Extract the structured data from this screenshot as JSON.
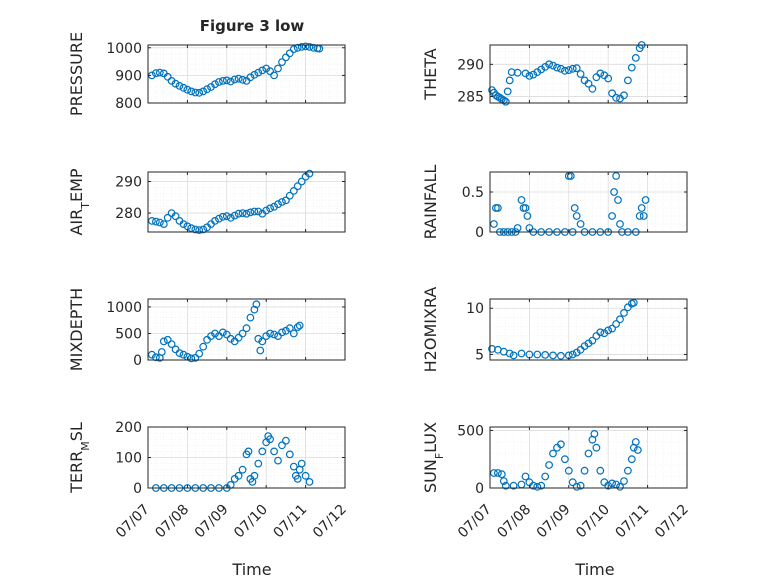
{
  "figure": {
    "title": "Figure 3 low",
    "xlabel": "Time"
  },
  "colors": {
    "marker": "#0072BD",
    "axis": "#262626",
    "grid": "#dcdcdc",
    "minorgrid": "#ececec"
  },
  "xaxis": {
    "range": [
      0,
      5
    ],
    "ticks": [
      0,
      1,
      2,
      3,
      4,
      5
    ],
    "tick_labels": [
      "07/07",
      "07/08",
      "07/09",
      "07/10",
      "07/11",
      "07/12"
    ]
  },
  "chart_data": [
    {
      "type": "scatter",
      "id": "pressure",
      "ylabel": "PRESSURE",
      "ylim": [
        800,
        1010
      ],
      "yticks": [
        800,
        900,
        1000
      ],
      "ytick_labels": [
        "800",
        "900",
        "1000"
      ],
      "show_xticks": false,
      "points": [
        [
          0.1,
          900
        ],
        [
          0.2,
          908
        ],
        [
          0.3,
          910
        ],
        [
          0.4,
          907
        ],
        [
          0.5,
          895
        ],
        [
          0.6,
          880
        ],
        [
          0.7,
          870
        ],
        [
          0.8,
          862
        ],
        [
          0.9,
          855
        ],
        [
          1.0,
          848
        ],
        [
          1.1,
          842
        ],
        [
          1.2,
          838
        ],
        [
          1.3,
          837
        ],
        [
          1.4,
          842
        ],
        [
          1.5,
          850
        ],
        [
          1.6,
          858
        ],
        [
          1.7,
          868
        ],
        [
          1.8,
          876
        ],
        [
          1.9,
          880
        ],
        [
          2.0,
          882
        ],
        [
          2.1,
          878
        ],
        [
          2.2,
          885
        ],
        [
          2.3,
          888
        ],
        [
          2.4,
          884
        ],
        [
          2.5,
          880
        ],
        [
          2.6,
          893
        ],
        [
          2.7,
          902
        ],
        [
          2.8,
          910
        ],
        [
          2.9,
          918
        ],
        [
          3.0,
          925
        ],
        [
          3.1,
          915
        ],
        [
          3.2,
          900
        ],
        [
          3.3,
          925
        ],
        [
          3.4,
          948
        ],
        [
          3.5,
          965
        ],
        [
          3.6,
          980
        ],
        [
          3.7,
          995
        ],
        [
          3.8,
          1000
        ],
        [
          3.9,
          1003
        ],
        [
          4.0,
          1005
        ],
        [
          4.1,
          1003
        ],
        [
          4.2,
          1000
        ],
        [
          4.3,
          998
        ],
        [
          4.35,
          997
        ]
      ]
    },
    {
      "type": "scatter",
      "id": "theta",
      "ylabel": "THETA",
      "ylim": [
        284,
        293
      ],
      "yticks": [
        285,
        290
      ],
      "ytick_labels": [
        "285",
        "290"
      ],
      "show_xticks": false,
      "points": [
        [
          0.05,
          286
        ],
        [
          0.1,
          285.6
        ],
        [
          0.15,
          285.2
        ],
        [
          0.2,
          285
        ],
        [
          0.25,
          284.8
        ],
        [
          0.3,
          284.6
        ],
        [
          0.35,
          284.4
        ],
        [
          0.4,
          284.2
        ],
        [
          0.45,
          285.8
        ],
        [
          0.5,
          287.5
        ],
        [
          0.55,
          288.8
        ],
        [
          0.7,
          288.7
        ],
        [
          0.9,
          288.6
        ],
        [
          1.0,
          288.2
        ],
        [
          1.1,
          288.4
        ],
        [
          1.2,
          288.8
        ],
        [
          1.3,
          289.2
        ],
        [
          1.4,
          289.6
        ],
        [
          1.5,
          290
        ],
        [
          1.6,
          289.8
        ],
        [
          1.7,
          289.5
        ],
        [
          1.8,
          289.3
        ],
        [
          1.9,
          289
        ],
        [
          2.0,
          289.1
        ],
        [
          2.1,
          289.3
        ],
        [
          2.2,
          289.4
        ],
        [
          2.3,
          288.5
        ],
        [
          2.4,
          287.5
        ],
        [
          2.5,
          287
        ],
        [
          2.6,
          286.2
        ],
        [
          2.7,
          288
        ],
        [
          2.8,
          288.6
        ],
        [
          2.9,
          288.3
        ],
        [
          3.0,
          287.8
        ],
        [
          3.1,
          285.5
        ],
        [
          3.2,
          284.8
        ],
        [
          3.3,
          284.7
        ],
        [
          3.4,
          285.2
        ],
        [
          3.5,
          287.5
        ],
        [
          3.6,
          289.5
        ],
        [
          3.7,
          291
        ],
        [
          3.8,
          292.5
        ],
        [
          3.85,
          293
        ]
      ]
    },
    {
      "type": "scatter",
      "id": "air_temp",
      "ylabel": "AIR_TEMP",
      "ylim": [
        274,
        293
      ],
      "yticks": [
        280,
        290
      ],
      "ytick_labels": [
        "280",
        "290"
      ],
      "show_xticks": false,
      "points": [
        [
          0.1,
          277.5
        ],
        [
          0.2,
          277.3
        ],
        [
          0.3,
          277
        ],
        [
          0.4,
          276.5
        ],
        [
          0.5,
          278.5
        ],
        [
          0.6,
          280
        ],
        [
          0.7,
          279
        ],
        [
          0.8,
          277.5
        ],
        [
          0.9,
          276.5
        ],
        [
          1.0,
          275.8
        ],
        [
          1.1,
          275.2
        ],
        [
          1.2,
          274.8
        ],
        [
          1.3,
          274.6
        ],
        [
          1.4,
          274.8
        ],
        [
          1.5,
          275.5
        ],
        [
          1.6,
          276.5
        ],
        [
          1.7,
          277.5
        ],
        [
          1.8,
          278.2
        ],
        [
          1.9,
          278.8
        ],
        [
          2.0,
          279
        ],
        [
          2.1,
          278.5
        ],
        [
          2.2,
          279.2
        ],
        [
          2.3,
          279.8
        ],
        [
          2.4,
          280
        ],
        [
          2.5,
          279.8
        ],
        [
          2.6,
          280.2
        ],
        [
          2.7,
          280.5
        ],
        [
          2.8,
          280.5
        ],
        [
          2.9,
          279.8
        ],
        [
          3.0,
          280.8
        ],
        [
          3.1,
          281.5
        ],
        [
          3.2,
          282
        ],
        [
          3.3,
          282.8
        ],
        [
          3.4,
          283.5
        ],
        [
          3.5,
          284
        ],
        [
          3.6,
          285.5
        ],
        [
          3.7,
          287
        ],
        [
          3.8,
          288.5
        ],
        [
          3.9,
          290
        ],
        [
          4.0,
          291.5
        ],
        [
          4.1,
          292.5
        ]
      ]
    },
    {
      "type": "scatter",
      "id": "rainfall",
      "ylabel": "RAINFALL",
      "ylim": [
        0,
        0.75
      ],
      "yticks": [
        0,
        0.5
      ],
      "ytick_labels": [
        "0",
        "0.5"
      ],
      "show_xticks": false,
      "points": [
        [
          0.1,
          0.1
        ],
        [
          0.15,
          0.3
        ],
        [
          0.2,
          0.3
        ],
        [
          0.25,
          0
        ],
        [
          0.35,
          0
        ],
        [
          0.45,
          0
        ],
        [
          0.55,
          0
        ],
        [
          0.65,
          0
        ],
        [
          0.7,
          0.05
        ],
        [
          0.8,
          0.4
        ],
        [
          0.85,
          0.3
        ],
        [
          0.9,
          0.3
        ],
        [
          0.95,
          0.2
        ],
        [
          1.0,
          0.05
        ],
        [
          1.1,
          0
        ],
        [
          1.3,
          0
        ],
        [
          1.5,
          0
        ],
        [
          1.7,
          0
        ],
        [
          1.9,
          0
        ],
        [
          2.0,
          0.7
        ],
        [
          2.05,
          0.7
        ],
        [
          2.1,
          0
        ],
        [
          2.15,
          0.3
        ],
        [
          2.2,
          0.2
        ],
        [
          2.3,
          0.1
        ],
        [
          2.4,
          0
        ],
        [
          2.6,
          0
        ],
        [
          2.8,
          0
        ],
        [
          3.0,
          0
        ],
        [
          3.1,
          0.2
        ],
        [
          3.15,
          0.5
        ],
        [
          3.2,
          0.7
        ],
        [
          3.25,
          0.4
        ],
        [
          3.3,
          0.1
        ],
        [
          3.35,
          0
        ],
        [
          3.5,
          0
        ],
        [
          3.7,
          0
        ],
        [
          3.8,
          0.2
        ],
        [
          3.85,
          0.3
        ],
        [
          3.9,
          0.2
        ],
        [
          3.95,
          0.4
        ]
      ]
    },
    {
      "type": "scatter",
      "id": "mixdepth",
      "ylabel": "MIXDEPTH",
      "ylim": [
        0,
        1150
      ],
      "yticks": [
        0,
        500,
        1000
      ],
      "ytick_labels": [
        "0",
        "500",
        "1000"
      ],
      "show_xticks": false,
      "points": [
        [
          0.1,
          100
        ],
        [
          0.2,
          50
        ],
        [
          0.3,
          40
        ],
        [
          0.35,
          150
        ],
        [
          0.4,
          350
        ],
        [
          0.5,
          380
        ],
        [
          0.6,
          300
        ],
        [
          0.7,
          200
        ],
        [
          0.8,
          130
        ],
        [
          0.9,
          100
        ],
        [
          1.0,
          60
        ],
        [
          1.1,
          30
        ],
        [
          1.2,
          40
        ],
        [
          1.3,
          120
        ],
        [
          1.4,
          250
        ],
        [
          1.5,
          380
        ],
        [
          1.6,
          450
        ],
        [
          1.7,
          500
        ],
        [
          1.8,
          450
        ],
        [
          1.9,
          520
        ],
        [
          2.0,
          480
        ],
        [
          2.1,
          400
        ],
        [
          2.2,
          350
        ],
        [
          2.3,
          420
        ],
        [
          2.4,
          500
        ],
        [
          2.5,
          600
        ],
        [
          2.6,
          800
        ],
        [
          2.7,
          950
        ],
        [
          2.75,
          1050
        ],
        [
          2.8,
          400
        ],
        [
          2.85,
          180
        ],
        [
          2.9,
          350
        ],
        [
          3.0,
          450
        ],
        [
          3.1,
          500
        ],
        [
          3.2,
          480
        ],
        [
          3.3,
          450
        ],
        [
          3.4,
          520
        ],
        [
          3.5,
          550
        ],
        [
          3.6,
          600
        ],
        [
          3.7,
          500
        ],
        [
          3.8,
          620
        ],
        [
          3.85,
          650
        ]
      ]
    },
    {
      "type": "scatter",
      "id": "h2omixra",
      "ylabel": "H2OMIXRA",
      "ylim": [
        4.4,
        11
      ],
      "yticks": [
        5,
        10
      ],
      "ytick_labels": [
        "5",
        "10"
      ],
      "show_xticks": false,
      "points": [
        [
          0.05,
          5.6
        ],
        [
          0.2,
          5.5
        ],
        [
          0.35,
          5.3
        ],
        [
          0.5,
          5.1
        ],
        [
          0.6,
          4.9
        ],
        [
          0.8,
          5.1
        ],
        [
          1.0,
          5.0
        ],
        [
          1.2,
          5.0
        ],
        [
          1.4,
          4.95
        ],
        [
          1.6,
          4.9
        ],
        [
          1.8,
          4.85
        ],
        [
          2.0,
          4.9
        ],
        [
          2.1,
          5.0
        ],
        [
          2.2,
          5.2
        ],
        [
          2.3,
          5.5
        ],
        [
          2.4,
          5.9
        ],
        [
          2.5,
          6.2
        ],
        [
          2.6,
          6.5
        ],
        [
          2.7,
          7.0
        ],
        [
          2.8,
          7.4
        ],
        [
          2.9,
          7.3
        ],
        [
          3.0,
          7.6
        ],
        [
          3.1,
          7.8
        ],
        [
          3.2,
          8.3
        ],
        [
          3.3,
          8.8
        ],
        [
          3.4,
          9.5
        ],
        [
          3.5,
          10.1
        ],
        [
          3.6,
          10.5
        ],
        [
          3.65,
          10.6
        ]
      ]
    },
    {
      "type": "scatter",
      "id": "terr_msl",
      "ylabel": "TERR_MSL",
      "ylim": [
        0,
        200
      ],
      "yticks": [
        0,
        100,
        200
      ],
      "ytick_labels": [
        "0",
        "100",
        "200"
      ],
      "show_xticks": true,
      "points": [
        [
          0.2,
          0
        ],
        [
          0.4,
          0
        ],
        [
          0.6,
          0
        ],
        [
          0.8,
          0
        ],
        [
          1.0,
          0
        ],
        [
          1.2,
          0
        ],
        [
          1.4,
          0
        ],
        [
          1.6,
          0
        ],
        [
          1.8,
          0
        ],
        [
          2.0,
          0
        ],
        [
          2.1,
          10
        ],
        [
          2.2,
          30
        ],
        [
          2.3,
          40
        ],
        [
          2.4,
          60
        ],
        [
          2.5,
          110
        ],
        [
          2.55,
          120
        ],
        [
          2.6,
          30
        ],
        [
          2.65,
          20
        ],
        [
          2.7,
          40
        ],
        [
          2.8,
          80
        ],
        [
          2.9,
          120
        ],
        [
          3.0,
          150
        ],
        [
          3.05,
          170
        ],
        [
          3.1,
          160
        ],
        [
          3.2,
          120
        ],
        [
          3.3,
          90
        ],
        [
          3.4,
          140
        ],
        [
          3.5,
          155
        ],
        [
          3.6,
          110
        ],
        [
          3.7,
          70
        ],
        [
          3.75,
          40
        ],
        [
          3.8,
          30
        ],
        [
          3.85,
          60
        ],
        [
          3.9,
          80
        ],
        [
          4.0,
          40
        ],
        [
          4.1,
          20
        ]
      ]
    },
    {
      "type": "scatter",
      "id": "sun_flux",
      "ylabel": "SUN_FLUX",
      "ylim": [
        0,
        530
      ],
      "yticks": [
        0,
        500
      ],
      "ytick_labels": [
        "0",
        "500"
      ],
      "show_xticks": true,
      "points": [
        [
          0.1,
          130
        ],
        [
          0.2,
          130
        ],
        [
          0.3,
          120
        ],
        [
          0.35,
          60
        ],
        [
          0.4,
          20
        ],
        [
          0.6,
          20
        ],
        [
          0.8,
          30
        ],
        [
          0.9,
          100
        ],
        [
          1.0,
          50
        ],
        [
          1.1,
          20
        ],
        [
          1.2,
          10
        ],
        [
          1.3,
          20
        ],
        [
          1.4,
          100
        ],
        [
          1.5,
          200
        ],
        [
          1.6,
          300
        ],
        [
          1.7,
          350
        ],
        [
          1.8,
          380
        ],
        [
          1.9,
          250
        ],
        [
          2.0,
          150
        ],
        [
          2.1,
          50
        ],
        [
          2.2,
          10
        ],
        [
          2.3,
          20
        ],
        [
          2.4,
          150
        ],
        [
          2.5,
          300
        ],
        [
          2.6,
          420
        ],
        [
          2.65,
          470
        ],
        [
          2.7,
          350
        ],
        [
          2.8,
          150
        ],
        [
          2.9,
          50
        ],
        [
          3.0,
          20
        ],
        [
          3.1,
          40
        ],
        [
          3.2,
          30
        ],
        [
          3.3,
          10
        ],
        [
          3.4,
          60
        ],
        [
          3.5,
          150
        ],
        [
          3.6,
          250
        ],
        [
          3.65,
          350
        ],
        [
          3.7,
          400
        ],
        [
          3.75,
          330
        ]
      ]
    }
  ]
}
